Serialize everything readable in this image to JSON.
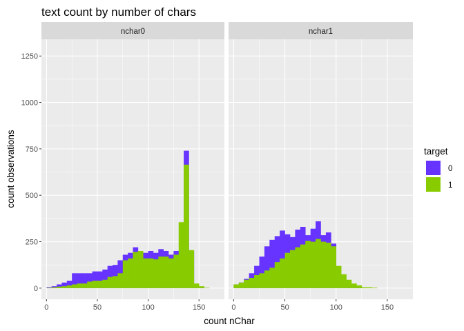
{
  "chart_data": {
    "type": "bar",
    "subtype": "stacked-histogram-faceted",
    "title": "text count by number of chars",
    "xlabel": "count nChar",
    "ylabel": "count observations",
    "xlim": [
      -5,
      175
    ],
    "ylim": [
      -60,
      1340
    ],
    "x_ticks": [
      0,
      50,
      100,
      150
    ],
    "y_ticks": [
      0,
      250,
      500,
      750,
      1000,
      1250
    ],
    "bin_width": 5,
    "grid": true,
    "legend": {
      "title": "target",
      "position": "right",
      "entries": [
        {
          "label": "0",
          "color": "#6633FF"
        },
        {
          "label": "1",
          "color": "#88CC00"
        }
      ]
    },
    "colors": {
      "series0": "#6633FF",
      "series1": "#88CC00",
      "panel_bg": "#EBEBEB",
      "strip_bg": "#D9D9D9",
      "grid": "#FFFFFF"
    },
    "facets": [
      {
        "label": "nchar0",
        "bin_starts": [
          0,
          5,
          10,
          15,
          20,
          25,
          30,
          35,
          40,
          45,
          50,
          55,
          60,
          65,
          70,
          75,
          80,
          85,
          90,
          95,
          100,
          105,
          110,
          115,
          120,
          125,
          130,
          135,
          140,
          145,
          150,
          155,
          160
        ],
        "series": [
          {
            "name": "0",
            "values": [
              5,
              10,
              20,
              30,
              40,
              80,
              80,
              80,
              80,
              90,
              90,
              100,
              120,
              125,
              150,
              180,
              190,
              220,
              200,
              190,
              200,
              190,
              210,
              200,
              180,
              200,
              100,
              740,
              200,
              5,
              5,
              1,
              0
            ]
          },
          {
            "name": "1",
            "values": [
              2,
              5,
              8,
              10,
              15,
              20,
              25,
              25,
              35,
              40,
              40,
              45,
              60,
              65,
              80,
              150,
              160,
              195,
              200,
              160,
              160,
              155,
              170,
              170,
              160,
              180,
              355,
              665,
              205,
              25,
              10,
              2,
              0
            ]
          }
        ]
      },
      {
        "label": "nchar1",
        "bin_starts": [
          0,
          5,
          10,
          15,
          20,
          25,
          30,
          35,
          40,
          45,
          50,
          55,
          60,
          65,
          70,
          75,
          80,
          85,
          90,
          95,
          100,
          105,
          110,
          115,
          120,
          125,
          130,
          135,
          140,
          145,
          150,
          155,
          160
        ],
        "series": [
          {
            "name": "0",
            "values": [
              20,
              30,
              50,
              80,
              120,
              170,
              225,
              260,
              280,
              310,
              290,
              275,
              315,
              330,
              285,
              320,
              360,
              285,
              300,
              240,
              60,
              30,
              15,
              5,
              3,
              0,
              0,
              0,
              0,
              0,
              0,
              0,
              0
            ]
          },
          {
            "name": "1",
            "values": [
              20,
              30,
              45,
              55,
              70,
              80,
              95,
              110,
              140,
              160,
              190,
              205,
              220,
              235,
              255,
              250,
              265,
              250,
              245,
              225,
              120,
              75,
              45,
              25,
              15,
              5,
              5,
              3,
              0,
              0,
              0,
              0,
              0
            ]
          }
        ]
      }
    ]
  }
}
